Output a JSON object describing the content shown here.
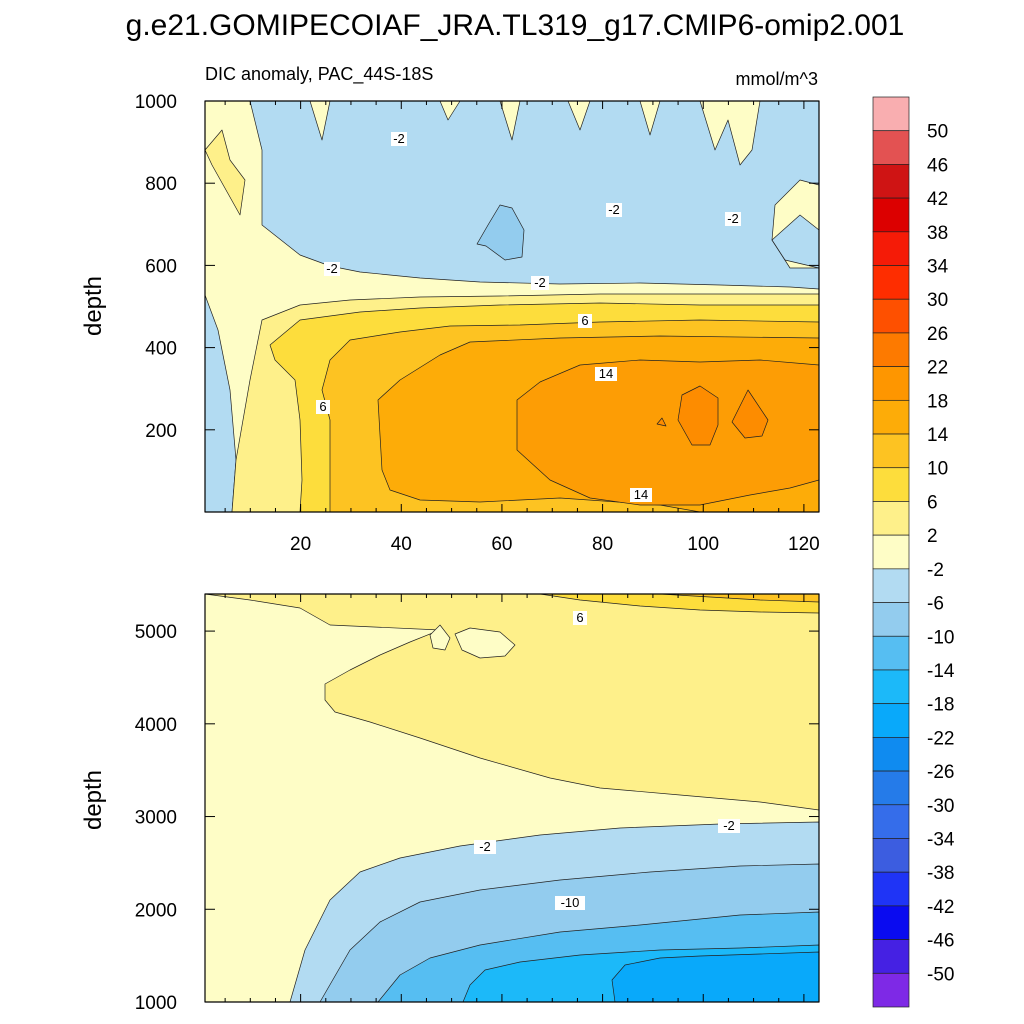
{
  "chart_data": [
    {
      "type": "contour",
      "title": "g.e21.GOMIPECOIAF_JRA.TL319_g17.CMIP6-omip2.001",
      "subtitle_left": "DIC anomaly, PAC_44S-18S",
      "subtitle_right": "mmol/m^3",
      "ylabel": "depth",
      "xlim": [
        1,
        123
      ],
      "ylim": [
        1000,
        0
      ],
      "xticks": [
        20,
        40,
        60,
        80,
        100,
        120
      ],
      "yticks": [
        200,
        400,
        600,
        800,
        1000
      ],
      "contour_labels": [
        "-2",
        "-2",
        "-2",
        "-2",
        "-2",
        "6",
        "14",
        "6",
        "14"
      ]
    },
    {
      "type": "contour",
      "ylabel": "depth",
      "xlim": [
        1,
        123
      ],
      "ylim": [
        5400,
        1000
      ],
      "yticks": [
        1000,
        2000,
        3000,
        4000,
        5000
      ],
      "contour_labels": [
        "6",
        "-2",
        "-2",
        "-10"
      ]
    }
  ],
  "colorbar": {
    "labels": [
      "50",
      "46",
      "42",
      "38",
      "34",
      "30",
      "26",
      "22",
      "18",
      "14",
      "10",
      "6",
      "2",
      "-2",
      "-6",
      "-10",
      "-14",
      "-18",
      "-22",
      "-26",
      "-30",
      "-34",
      "-38",
      "-42",
      "-46",
      "-50"
    ],
    "colors": [
      "#f9aeb0",
      "#e35252",
      "#cf1414",
      "#dc0000",
      "#f51b07",
      "#fe2d00",
      "#fe5000",
      "#fd7a00",
      "#fe9600",
      "#fdac08",
      "#fdc322",
      "#fddd3c",
      "#fef08a",
      "#fefdc6",
      "#b2dbf2",
      "#93ccee",
      "#56bef2",
      "#1cb9f9",
      "#09a9fa",
      "#0f8bf0",
      "#257be9",
      "#356dea",
      "#3c5de0",
      "#1f34f6",
      "#0a0bf0",
      "#4521e3",
      "#7e29e6"
    ]
  }
}
